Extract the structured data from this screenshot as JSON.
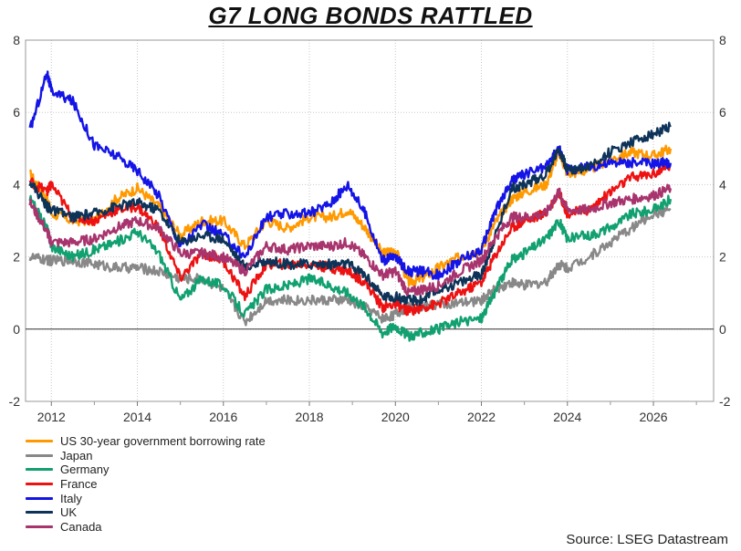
{
  "title": "G7 LONG BONDS RATTLED",
  "source": "Source: LSEG Datastream",
  "chart_data": {
    "type": "line",
    "title": "G7 LONG BONDS RATTLED",
    "xlabel": "",
    "ylabel": "",
    "xlim": [
      2011.4,
      2027.4
    ],
    "ylim": [
      -2,
      8
    ],
    "x_ticks": [
      "2012",
      "2014",
      "2016",
      "2018",
      "2020",
      "2022",
      "2024",
      "2026"
    ],
    "y_ticks_left": [
      "8",
      "6",
      "4",
      "2",
      "0",
      "-2"
    ],
    "y_ticks_right": [
      "8",
      "6",
      "4",
      "2",
      "0",
      "-2"
    ],
    "grid": true,
    "legend_position": "bottom-left",
    "x": [
      2011.5,
      2011.9,
      2012.0,
      2012.5,
      2013.0,
      2013.5,
      2014.0,
      2014.5,
      2015.0,
      2015.5,
      2016.0,
      2016.5,
      2017.0,
      2017.5,
      2018.0,
      2018.5,
      2018.9,
      2019.3,
      2019.7,
      2020.0,
      2020.3,
      2020.6,
      2021.0,
      2021.5,
      2022.0,
      2022.3,
      2022.7,
      2023.0,
      2023.5,
      2023.8,
      2024.0,
      2024.5,
      2025.0,
      2025.5,
      2026.0,
      2026.4
    ],
    "series": [
      {
        "name": "US 30-year government borrowing rate",
        "color": "#ff9900",
        "values": [
          4.3,
          3.6,
          3.2,
          3.0,
          3.0,
          3.6,
          3.9,
          3.4,
          2.6,
          3.0,
          3.0,
          2.3,
          3.0,
          2.8,
          3.1,
          3.1,
          3.3,
          2.8,
          2.1,
          2.2,
          1.3,
          1.4,
          1.7,
          2.0,
          2.2,
          2.9,
          3.6,
          3.8,
          4.0,
          4.9,
          4.3,
          4.4,
          4.7,
          4.9,
          4.8,
          5.0
        ]
      },
      {
        "name": "Japan",
        "color": "#888888",
        "values": [
          2.0,
          1.9,
          1.9,
          1.9,
          1.8,
          1.7,
          1.7,
          1.6,
          1.4,
          1.4,
          1.1,
          0.2,
          0.8,
          0.8,
          0.8,
          0.8,
          0.8,
          0.6,
          0.3,
          0.4,
          0.6,
          0.6,
          0.7,
          0.7,
          0.8,
          1.1,
          1.3,
          1.2,
          1.3,
          1.8,
          1.7,
          2.0,
          2.4,
          2.8,
          3.2,
          3.3
        ]
      },
      {
        "name": "Germany",
        "color": "#11a070",
        "values": [
          3.6,
          2.8,
          2.3,
          2.0,
          2.2,
          2.4,
          2.7,
          2.1,
          0.8,
          1.4,
          1.2,
          0.4,
          1.1,
          1.2,
          1.4,
          1.2,
          1.0,
          0.6,
          -0.1,
          0.1,
          -0.2,
          -0.1,
          0.0,
          0.2,
          0.3,
          1.0,
          1.9,
          2.1,
          2.5,
          3.0,
          2.5,
          2.6,
          2.8,
          3.2,
          3.3,
          3.6
        ]
      },
      {
        "name": "France",
        "color": "#ee1111",
        "values": [
          4.1,
          3.8,
          4.0,
          3.1,
          3.0,
          3.3,
          3.4,
          2.8,
          1.4,
          2.1,
          1.9,
          0.9,
          1.8,
          1.8,
          1.8,
          1.7,
          1.6,
          1.3,
          0.6,
          0.7,
          0.5,
          0.6,
          0.7,
          1.0,
          1.3,
          2.0,
          2.8,
          3.0,
          3.2,
          3.8,
          3.2,
          3.3,
          3.8,
          4.2,
          4.3,
          4.5
        ]
      },
      {
        "name": "Italy",
        "color": "#1414e6",
        "values": [
          5.5,
          7.1,
          6.6,
          6.3,
          5.1,
          4.8,
          4.4,
          3.7,
          2.3,
          2.9,
          2.6,
          2.0,
          3.1,
          3.2,
          3.2,
          3.5,
          4.0,
          3.2,
          1.9,
          2.0,
          1.6,
          1.6,
          1.5,
          1.9,
          2.2,
          3.2,
          4.1,
          4.3,
          4.5,
          5.0,
          4.4,
          4.5,
          4.6,
          4.6,
          4.6,
          4.6
        ]
      },
      {
        "name": "UK",
        "color": "#0e3358",
        "values": [
          4.1,
          3.4,
          3.3,
          3.1,
          3.2,
          3.4,
          3.5,
          3.3,
          2.4,
          2.6,
          2.5,
          1.7,
          1.9,
          1.8,
          1.8,
          1.8,
          1.8,
          1.5,
          0.9,
          0.9,
          0.8,
          0.8,
          1.1,
          1.3,
          1.5,
          2.5,
          3.9,
          4.0,
          4.3,
          5.0,
          4.4,
          4.5,
          4.9,
          5.2,
          5.4,
          5.6
        ]
      },
      {
        "name": "Canada",
        "color": "#a8346e",
        "values": [
          3.5,
          2.7,
          2.4,
          2.4,
          2.5,
          2.8,
          3.0,
          2.8,
          2.1,
          2.1,
          2.0,
          1.6,
          2.3,
          2.2,
          2.3,
          2.3,
          2.4,
          2.0,
          1.5,
          1.6,
          1.0,
          1.1,
          1.2,
          1.6,
          1.9,
          2.5,
          3.1,
          3.1,
          3.2,
          3.8,
          3.3,
          3.3,
          3.5,
          3.6,
          3.7,
          3.9
        ]
      }
    ]
  }
}
